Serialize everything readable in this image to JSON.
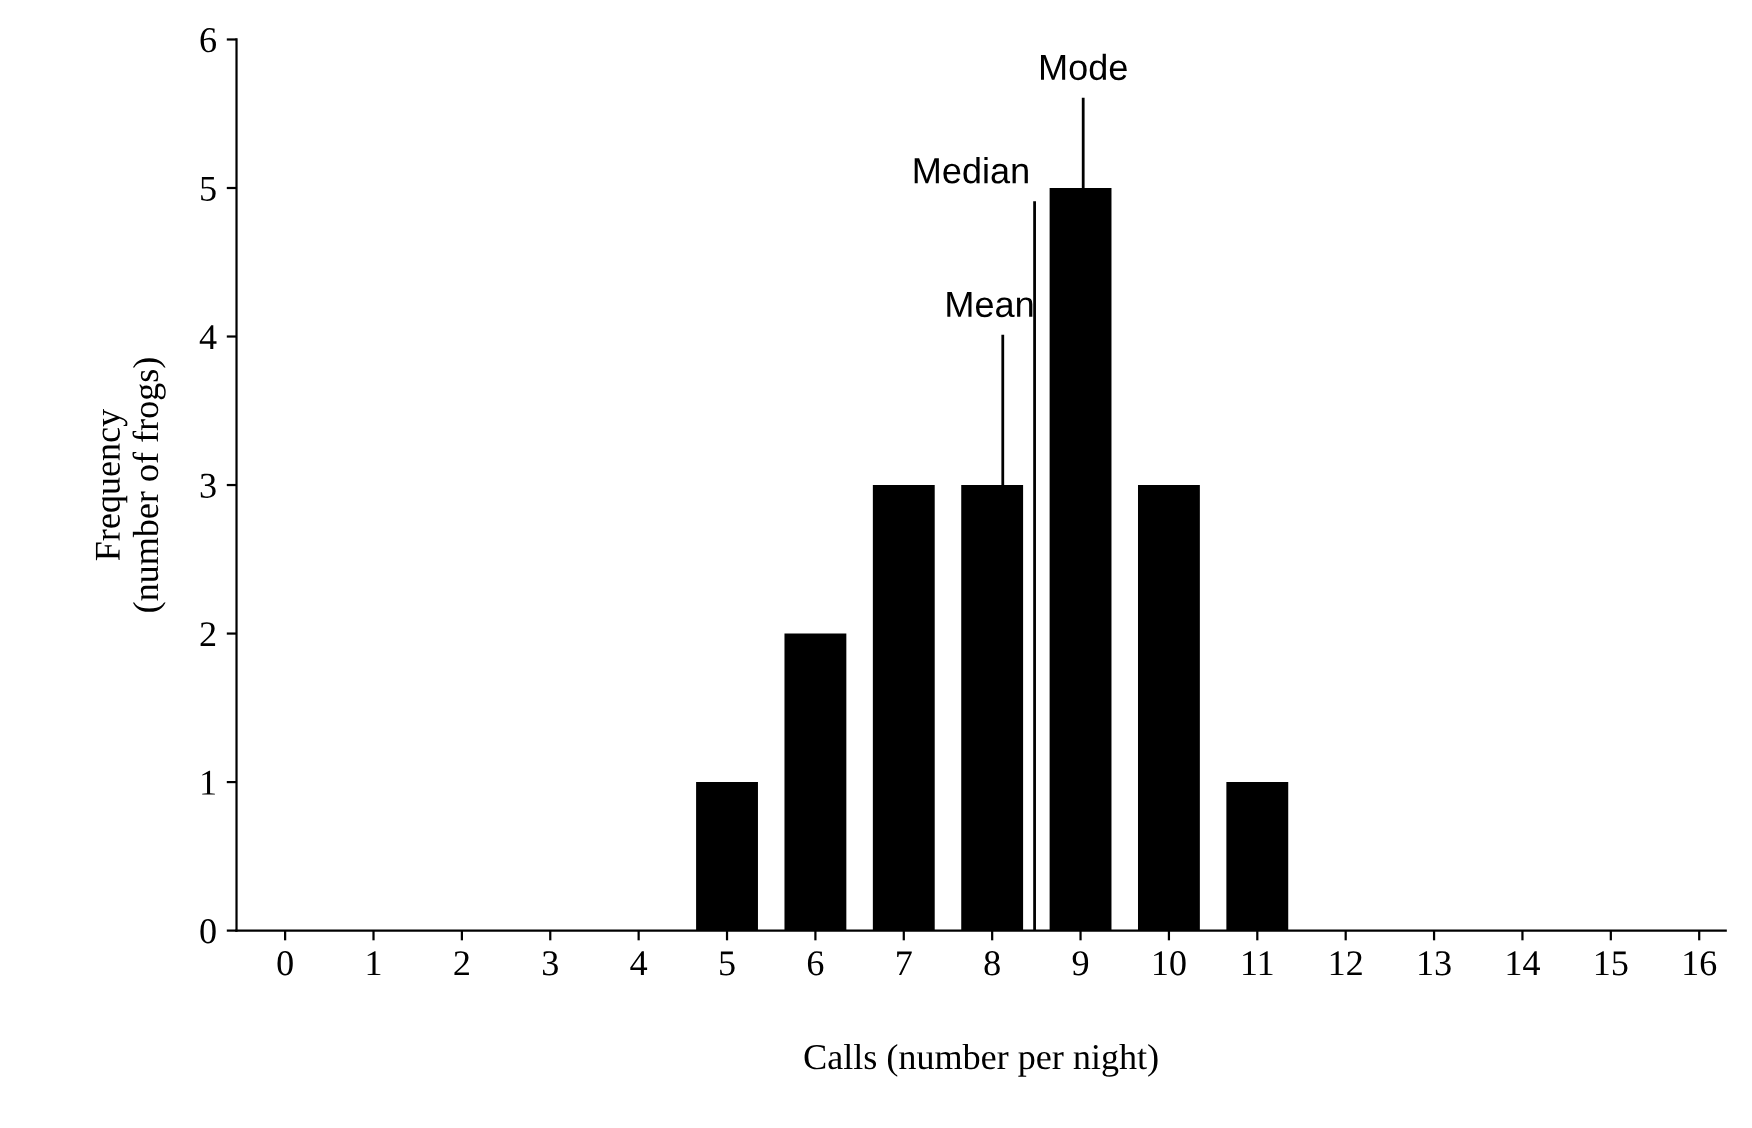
{
  "chart_data": {
    "type": "bar",
    "xlabel": "Calls (number per night)",
    "ylabel": "Frequency\n(number of frogs)",
    "x": [
      0,
      1,
      2,
      3,
      4,
      5,
      6,
      7,
      8,
      9,
      10,
      11,
      12,
      13,
      14,
      15,
      16
    ],
    "values": [
      0,
      0,
      0,
      0,
      0,
      1,
      2,
      3,
      3,
      5,
      3,
      1,
      0,
      0,
      0,
      0,
      0
    ],
    "color": "#000000",
    "xlim": [
      -0.55,
      16.3
    ],
    "xticks": [
      0,
      1,
      2,
      3,
      4,
      5,
      6,
      7,
      8,
      9,
      10,
      11,
      12,
      13,
      14,
      15,
      16
    ],
    "ylim": [
      0,
      6
    ],
    "yticks": [
      0,
      1,
      2,
      3,
      4,
      5,
      6
    ],
    "legend": false,
    "ref_lines": [
      {
        "axis": "x",
        "value": 8.12,
        "label": "Mean"
      },
      {
        "axis": "x",
        "value": 8.48,
        "label": "Median"
      },
      {
        "axis": "x",
        "value": 9.03,
        "label": "Mode"
      }
    ]
  }
}
